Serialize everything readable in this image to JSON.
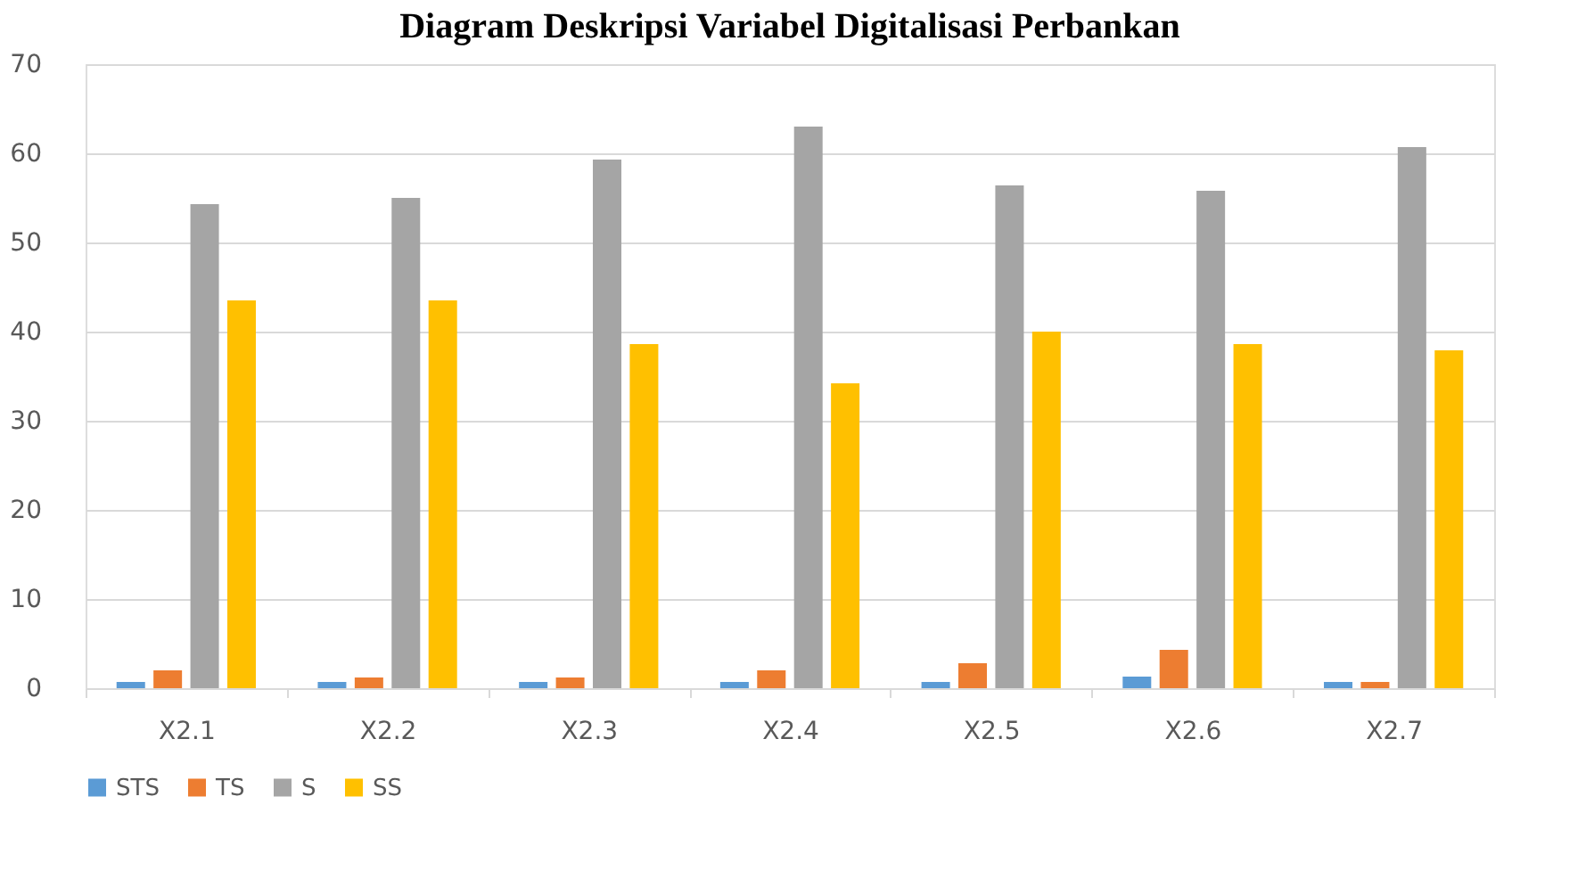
{
  "chart_data": {
    "type": "bar",
    "title": "Diagram Deskripsi Variabel Digitalisasi Perbankan",
    "categories": [
      "X2.1",
      "X2.2",
      "X2.3",
      "X2.4",
      "X2.5",
      "X2.6",
      "X2.7"
    ],
    "series": [
      {
        "name": "STS",
        "color": "#5b9bd5",
        "values": [
          0.7,
          0.7,
          0.7,
          0.7,
          0.7,
          1.3,
          0.7
        ]
      },
      {
        "name": "TS",
        "color": "#ed7d31",
        "values": [
          2.0,
          1.2,
          1.2,
          2.0,
          2.8,
          4.3,
          0.7
        ]
      },
      {
        "name": "S",
        "color": "#a5a5a5",
        "values": [
          54.3,
          55.0,
          59.3,
          63.0,
          56.4,
          55.8,
          60.7
        ]
      },
      {
        "name": "SS",
        "color": "#ffc000",
        "values": [
          43.5,
          43.5,
          38.6,
          34.2,
          40.0,
          38.6,
          37.9
        ]
      }
    ],
    "ylim": [
      0,
      70
    ],
    "yticks": [
      0,
      10,
      20,
      30,
      40,
      50,
      60,
      70
    ],
    "grid": "y",
    "legend": "bottom"
  }
}
